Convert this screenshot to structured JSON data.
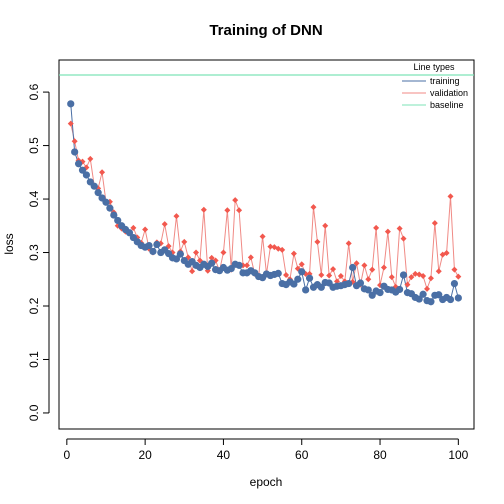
{
  "chart_data": {
    "type": "line",
    "title": "Training of DNN",
    "xlabel": "epoch",
    "ylabel": "loss",
    "xlim": [
      -2,
      104
    ],
    "ylim": [
      -0.03,
      0.66
    ],
    "xticks": [
      0,
      20,
      40,
      60,
      80,
      100
    ],
    "yticks": [
      0.0,
      0.1,
      0.2,
      0.3,
      0.4,
      0.5,
      0.6
    ],
    "xtick_labels": [
      "0",
      "20",
      "40",
      "60",
      "80",
      "100"
    ],
    "ytick_labels": [
      "0.0",
      "0.1",
      "0.2",
      "0.3",
      "0.4",
      "0.5",
      "0.6"
    ],
    "grid": false,
    "legend": {
      "title": "Line types",
      "position": "top-right",
      "entries": [
        "training",
        "validation",
        "baseline"
      ]
    },
    "baseline": {
      "name": "baseline",
      "value": 0.632,
      "color": "#7ee3b7"
    },
    "series": [
      {
        "name": "training",
        "color": "#4a6fa5",
        "marker": "circle",
        "x": [
          1,
          2,
          3,
          4,
          5,
          6,
          7,
          8,
          9,
          10,
          11,
          12,
          13,
          14,
          15,
          16,
          17,
          18,
          19,
          20,
          21,
          22,
          23,
          24,
          25,
          26,
          27,
          28,
          29,
          30,
          31,
          32,
          33,
          34,
          35,
          36,
          37,
          38,
          39,
          40,
          41,
          42,
          43,
          44,
          45,
          46,
          47,
          48,
          49,
          50,
          51,
          52,
          53,
          54,
          55,
          56,
          57,
          58,
          59,
          60,
          61,
          62,
          63,
          64,
          65,
          66,
          67,
          68,
          69,
          70,
          71,
          72,
          73,
          74,
          75,
          76,
          77,
          78,
          79,
          80,
          81,
          82,
          83,
          84,
          85,
          86,
          87,
          88,
          89,
          90,
          91,
          92,
          93,
          94,
          95,
          96,
          97,
          98,
          99,
          100
        ],
        "values": [
          0.578,
          0.488,
          0.466,
          0.454,
          0.445,
          0.432,
          0.424,
          0.412,
          0.402,
          0.394,
          0.383,
          0.37,
          0.36,
          0.35,
          0.343,
          0.337,
          0.328,
          0.32,
          0.313,
          0.31,
          0.313,
          0.302,
          0.315,
          0.3,
          0.305,
          0.298,
          0.29,
          0.288,
          0.297,
          0.285,
          0.278,
          0.283,
          0.276,
          0.272,
          0.278,
          0.274,
          0.28,
          0.268,
          0.266,
          0.272,
          0.267,
          0.27,
          0.278,
          0.276,
          0.262,
          0.262,
          0.266,
          0.262,
          0.255,
          0.253,
          0.26,
          0.257,
          0.259,
          0.261,
          0.242,
          0.24,
          0.245,
          0.241,
          0.25,
          0.264,
          0.23,
          0.252,
          0.235,
          0.24,
          0.235,
          0.244,
          0.243,
          0.235,
          0.237,
          0.238,
          0.24,
          0.242,
          0.272,
          0.238,
          0.243,
          0.232,
          0.23,
          0.22,
          0.228,
          0.225,
          0.237,
          0.231,
          0.23,
          0.226,
          0.231,
          0.258,
          0.225,
          0.223,
          0.216,
          0.213,
          0.222,
          0.21,
          0.208,
          0.22,
          0.221,
          0.212,
          0.216,
          0.212,
          0.242,
          0.215
        ]
      },
      {
        "name": "validation",
        "color": "#f2584e",
        "line_color": "#f08a85",
        "marker": "diamond",
        "x": [
          1,
          2,
          3,
          4,
          5,
          6,
          7,
          8,
          9,
          10,
          11,
          12,
          13,
          14,
          15,
          16,
          17,
          18,
          19,
          20,
          21,
          22,
          23,
          24,
          25,
          26,
          27,
          28,
          29,
          30,
          31,
          32,
          33,
          34,
          35,
          36,
          37,
          38,
          39,
          40,
          41,
          42,
          43,
          44,
          45,
          46,
          47,
          48,
          49,
          50,
          51,
          52,
          53,
          54,
          55,
          56,
          57,
          58,
          59,
          60,
          61,
          62,
          63,
          64,
          65,
          66,
          67,
          68,
          69,
          70,
          71,
          72,
          73,
          74,
          75,
          76,
          77,
          78,
          79,
          80,
          81,
          82,
          83,
          84,
          85,
          86,
          87,
          88,
          89,
          90,
          91,
          92,
          93,
          94,
          95,
          96,
          97,
          98,
          99,
          100
        ],
        "values": [
          0.541,
          0.508,
          0.472,
          0.47,
          0.459,
          0.475,
          0.425,
          0.42,
          0.45,
          0.395,
          0.395,
          0.375,
          0.35,
          0.345,
          0.339,
          0.336,
          0.346,
          0.328,
          0.318,
          0.343,
          0.307,
          0.3,
          0.319,
          0.317,
          0.353,
          0.312,
          0.3,
          0.368,
          0.302,
          0.32,
          0.291,
          0.265,
          0.3,
          0.285,
          0.38,
          0.266,
          0.29,
          0.285,
          0.266,
          0.3,
          0.379,
          0.268,
          0.398,
          0.379,
          0.276,
          0.276,
          0.291,
          0.26,
          0.255,
          0.33,
          0.26,
          0.311,
          0.31,
          0.307,
          0.305,
          0.258,
          0.25,
          0.298,
          0.27,
          0.278,
          0.26,
          0.26,
          0.385,
          0.32,
          0.258,
          0.35,
          0.257,
          0.269,
          0.246,
          0.256,
          0.246,
          0.317,
          0.245,
          0.28,
          0.24,
          0.276,
          0.25,
          0.268,
          0.346,
          0.239,
          0.272,
          0.339,
          0.254,
          0.236,
          0.345,
          0.326,
          0.24,
          0.254,
          0.26,
          0.259,
          0.256,
          0.232,
          0.252,
          0.355,
          0.265,
          0.296,
          0.299,
          0.405,
          0.268,
          0.255
        ]
      }
    ]
  }
}
